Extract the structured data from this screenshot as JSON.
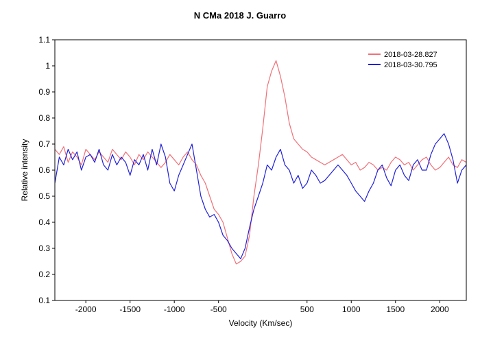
{
  "chart_data": {
    "type": "line",
    "title": "N CMa 2018   J. Guarro",
    "xlabel": "Velocity (Km/sec)",
    "ylabel": "Relative intensity",
    "xlim": [
      -2350,
      2300
    ],
    "ylim": [
      0.1,
      1.1
    ],
    "xticks": [
      -2000,
      -1500,
      -1000,
      -500,
      500,
      1000,
      1500,
      2000
    ],
    "xtick_labels": [
      "-2000",
      "-1500",
      "-1000",
      "-500",
      "500",
      "1000",
      "1500",
      "2000"
    ],
    "yticks": [
      0.1,
      0.2,
      0.3,
      0.4,
      0.5,
      0.6,
      0.7,
      0.8,
      0.9,
      1.0,
      1.1
    ],
    "ytick_labels": [
      "0.1",
      "0.2",
      "0.3",
      "0.4",
      "0.5",
      "0.6",
      "0.7",
      "0.8",
      "0.9",
      "1",
      "1.1"
    ],
    "grid": false,
    "legend_position": "top-right",
    "series": [
      {
        "name": "2018-03-28.827",
        "color": "#f07078",
        "x": [
          -2350,
          -2300,
          -2250,
          -2200,
          -2150,
          -2100,
          -2050,
          -2000,
          -1950,
          -1900,
          -1850,
          -1800,
          -1750,
          -1700,
          -1650,
          -1600,
          -1550,
          -1500,
          -1450,
          -1400,
          -1350,
          -1300,
          -1250,
          -1200,
          -1150,
          -1100,
          -1050,
          -1000,
          -950,
          -900,
          -850,
          -800,
          -750,
          -700,
          -650,
          -600,
          -550,
          -500,
          -450,
          -400,
          -350,
          -300,
          -250,
          -200,
          -150,
          -100,
          -50,
          0,
          50,
          100,
          150,
          200,
          250,
          300,
          350,
          400,
          450,
          500,
          550,
          600,
          650,
          700,
          750,
          800,
          850,
          900,
          950,
          1000,
          1050,
          1100,
          1150,
          1200,
          1250,
          1300,
          1350,
          1400,
          1450,
          1500,
          1550,
          1600,
          1650,
          1700,
          1750,
          1800,
          1850,
          1900,
          1950,
          2000,
          2050,
          2100,
          2150,
          2200,
          2250,
          2300
        ],
        "y": [
          0.68,
          0.66,
          0.69,
          0.63,
          0.67,
          0.65,
          0.62,
          0.68,
          0.66,
          0.64,
          0.67,
          0.65,
          0.63,
          0.68,
          0.66,
          0.64,
          0.67,
          0.65,
          0.62,
          0.66,
          0.64,
          0.67,
          0.65,
          0.63,
          0.61,
          0.63,
          0.66,
          0.64,
          0.62,
          0.65,
          0.67,
          0.64,
          0.62,
          0.58,
          0.55,
          0.5,
          0.45,
          0.43,
          0.4,
          0.34,
          0.28,
          0.24,
          0.25,
          0.27,
          0.35,
          0.5,
          0.62,
          0.76,
          0.92,
          0.98,
          1.02,
          0.96,
          0.88,
          0.78,
          0.72,
          0.7,
          0.68,
          0.67,
          0.65,
          0.64,
          0.63,
          0.62,
          0.63,
          0.64,
          0.65,
          0.66,
          0.64,
          0.62,
          0.63,
          0.6,
          0.61,
          0.63,
          0.62,
          0.6,
          0.61,
          0.6,
          0.63,
          0.65,
          0.64,
          0.62,
          0.63,
          0.6,
          0.62,
          0.64,
          0.65,
          0.62,
          0.6,
          0.61,
          0.63,
          0.65,
          0.62,
          0.61,
          0.64,
          0.63
        ]
      },
      {
        "name": "2018-03-30.795",
        "color": "#2020d8",
        "x": [
          -2350,
          -2300,
          -2250,
          -2200,
          -2150,
          -2100,
          -2050,
          -2000,
          -1950,
          -1900,
          -1850,
          -1800,
          -1750,
          -1700,
          -1650,
          -1600,
          -1550,
          -1500,
          -1450,
          -1400,
          -1350,
          -1300,
          -1250,
          -1200,
          -1150,
          -1100,
          -1050,
          -1000,
          -950,
          -900,
          -850,
          -800,
          -750,
          -700,
          -650,
          -600,
          -550,
          -500,
          -450,
          -400,
          -350,
          -300,
          -250,
          -200,
          -150,
          -100,
          -50,
          0,
          50,
          100,
          150,
          200,
          250,
          300,
          350,
          400,
          450,
          500,
          550,
          600,
          650,
          700,
          750,
          800,
          850,
          900,
          950,
          1000,
          1050,
          1100,
          1150,
          1200,
          1250,
          1300,
          1350,
          1400,
          1450,
          1500,
          1550,
          1600,
          1650,
          1700,
          1750,
          1800,
          1850,
          1900,
          1950,
          2000,
          2050,
          2100,
          2150,
          2200,
          2250,
          2300
        ],
        "y": [
          0.55,
          0.65,
          0.62,
          0.68,
          0.64,
          0.67,
          0.6,
          0.65,
          0.66,
          0.63,
          0.68,
          0.62,
          0.6,
          0.66,
          0.62,
          0.65,
          0.63,
          0.58,
          0.64,
          0.62,
          0.66,
          0.6,
          0.68,
          0.62,
          0.7,
          0.65,
          0.55,
          0.52,
          0.58,
          0.62,
          0.66,
          0.7,
          0.6,
          0.5,
          0.45,
          0.42,
          0.43,
          0.4,
          0.35,
          0.33,
          0.3,
          0.28,
          0.26,
          0.3,
          0.38,
          0.45,
          0.5,
          0.55,
          0.62,
          0.6,
          0.65,
          0.68,
          0.62,
          0.6,
          0.55,
          0.58,
          0.53,
          0.55,
          0.6,
          0.58,
          0.55,
          0.56,
          0.58,
          0.6,
          0.62,
          0.6,
          0.58,
          0.55,
          0.52,
          0.5,
          0.48,
          0.52,
          0.55,
          0.6,
          0.62,
          0.57,
          0.54,
          0.6,
          0.62,
          0.58,
          0.56,
          0.62,
          0.64,
          0.6,
          0.6,
          0.66,
          0.7,
          0.72,
          0.74,
          0.7,
          0.64,
          0.55,
          0.6,
          0.62
        ]
      }
    ]
  }
}
